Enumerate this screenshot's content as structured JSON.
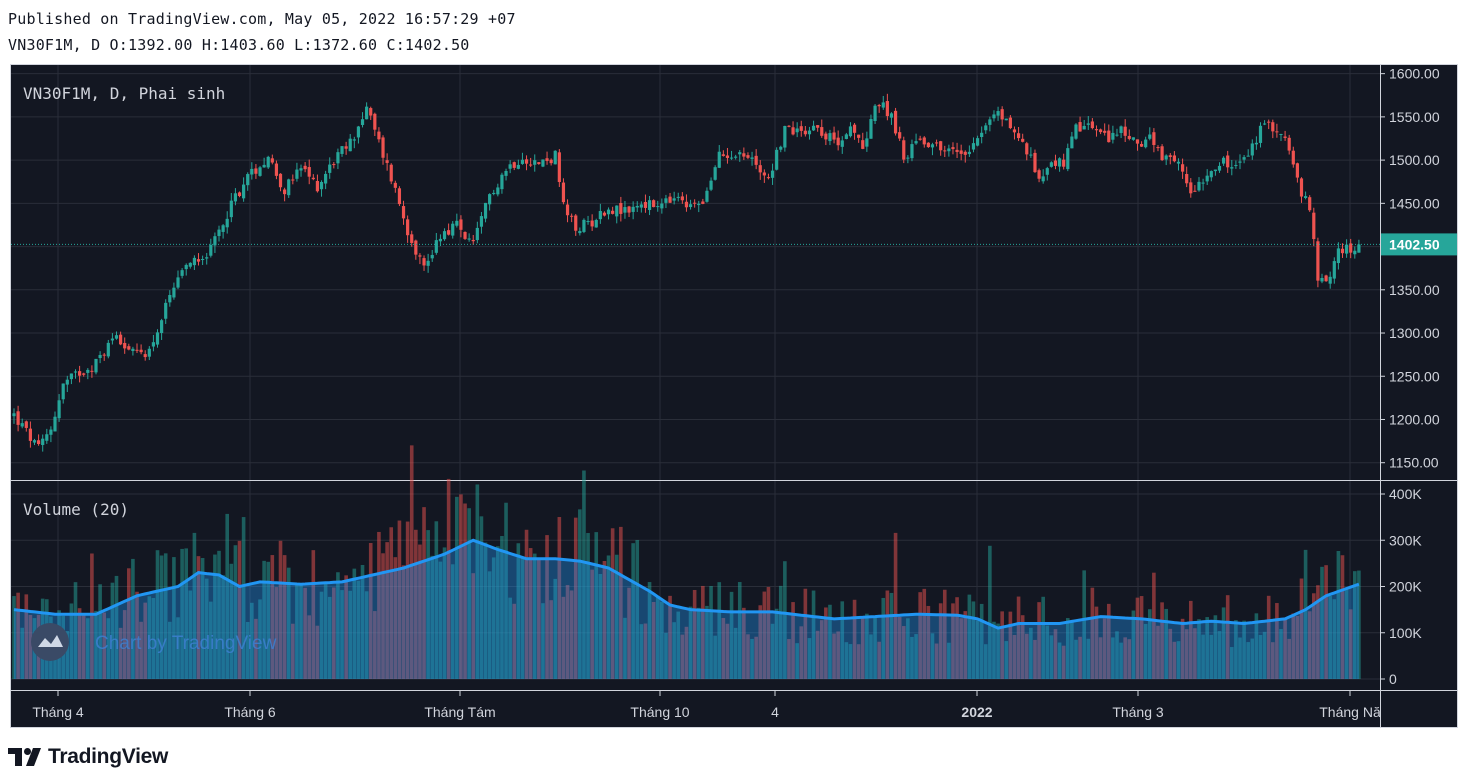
{
  "header": {
    "published": "Published on TradingView.com, May 05, 2022 16:57:29 +07",
    "ohlc_line": "VN30F1M, D O:1392.00 H:1403.60 L:1372.60 C:1402.50"
  },
  "legend": {
    "main": "VN30F1M, D, Phai sinh",
    "volume": "Volume (20)"
  },
  "watermark": {
    "text": "Chart by TradingView"
  },
  "brand": {
    "text": "TradingView"
  },
  "colors": {
    "background": "#131722",
    "up": "#26a69a",
    "down": "#ef5350",
    "grid": "#2a2e39",
    "volume_ma": "#2196f3",
    "last_price_tag": "#26a69a"
  },
  "chart_data": {
    "type": "candlestick",
    "symbol": "VN30F1M",
    "interval": "D",
    "last_price": "1402.50",
    "price_axis": {
      "ticks": [
        "1150.00",
        "1200.00",
        "1250.00",
        "1300.00",
        "1350.00",
        "1400.00",
        "1450.00",
        "1500.00",
        "1550.00",
        "1600.00"
      ],
      "range": [
        1130,
        1610
      ]
    },
    "volume_axis": {
      "ticks": [
        "0",
        "100K",
        "200K",
        "300K",
        "400K"
      ],
      "range": [
        0,
        400000
      ]
    },
    "time_axis": {
      "labels": [
        "Tháng 4",
        "Tháng 6",
        "Tháng Tám",
        "Tháng 10",
        "4",
        "2022",
        "Tháng 3",
        "Tháng Nă"
      ],
      "bold_label": "2022"
    },
    "price_path": [
      [
        0,
        1205
      ],
      [
        3,
        1185
      ],
      [
        6,
        1165
      ],
      [
        9,
        1190
      ],
      [
        12,
        1240
      ],
      [
        16,
        1255
      ],
      [
        20,
        1265
      ],
      [
        25,
        1300
      ],
      [
        29,
        1275
      ],
      [
        33,
        1280
      ],
      [
        38,
        1340
      ],
      [
        43,
        1385
      ],
      [
        48,
        1395
      ],
      [
        53,
        1450
      ],
      [
        57,
        1480
      ],
      [
        62,
        1505
      ],
      [
        66,
        1465
      ],
      [
        70,
        1490
      ],
      [
        74,
        1470
      ],
      [
        78,
        1500
      ],
      [
        82,
        1520
      ],
      [
        86,
        1560
      ],
      [
        89,
        1520
      ],
      [
        92,
        1480
      ],
      [
        96,
        1420
      ],
      [
        100,
        1375
      ],
      [
        104,
        1415
      ],
      [
        108,
        1425
      ],
      [
        112,
        1400
      ],
      [
        116,
        1460
      ],
      [
        120,
        1490
      ],
      [
        124,
        1505
      ],
      [
        128,
        1495
      ],
      [
        132,
        1505
      ],
      [
        134,
        1445
      ],
      [
        137,
        1420
      ],
      [
        141,
        1430
      ],
      [
        145,
        1445
      ],
      [
        149,
        1440
      ],
      [
        153,
        1450
      ],
      [
        157,
        1445
      ],
      [
        161,
        1455
      ],
      [
        165,
        1445
      ],
      [
        169,
        1460
      ],
      [
        172,
        1505
      ],
      [
        176,
        1510
      ],
      [
        180,
        1500
      ],
      [
        184,
        1480
      ],
      [
        188,
        1535
      ],
      [
        192,
        1535
      ],
      [
        196,
        1540
      ],
      [
        200,
        1520
      ],
      [
        204,
        1535
      ],
      [
        207,
        1515
      ],
      [
        210,
        1565
      ],
      [
        214,
        1555
      ],
      [
        217,
        1500
      ],
      [
        220,
        1525
      ],
      [
        224,
        1520
      ],
      [
        228,
        1510
      ],
      [
        232,
        1510
      ],
      [
        236,
        1535
      ],
      [
        240,
        1555
      ],
      [
        243,
        1540
      ],
      [
        247,
        1510
      ],
      [
        250,
        1480
      ],
      [
        253,
        1500
      ],
      [
        256,
        1495
      ],
      [
        259,
        1535
      ],
      [
        263,
        1540
      ],
      [
        266,
        1525
      ],
      [
        270,
        1535
      ],
      [
        273,
        1520
      ],
      [
        277,
        1525
      ],
      [
        280,
        1500
      ],
      [
        284,
        1495
      ],
      [
        287,
        1465
      ],
      [
        291,
        1485
      ],
      [
        294,
        1500
      ],
      [
        297,
        1490
      ],
      [
        301,
        1505
      ],
      [
        304,
        1535
      ],
      [
        307,
        1540
      ],
      [
        310,
        1525
      ],
      [
        313,
        1475
      ],
      [
        316,
        1440
      ],
      [
        318,
        1365
      ],
      [
        320,
        1355
      ],
      [
        323,
        1395
      ],
      [
        325,
        1400
      ],
      [
        327,
        1390
      ],
      [
        328,
        1402.5
      ]
    ],
    "volume_path": [
      [
        0,
        150000
      ],
      [
        10,
        140000
      ],
      [
        20,
        140000
      ],
      [
        30,
        180000
      ],
      [
        40,
        200000
      ],
      [
        45,
        230000
      ],
      [
        50,
        225000
      ],
      [
        55,
        200000
      ],
      [
        60,
        210000
      ],
      [
        70,
        205000
      ],
      [
        80,
        210000
      ],
      [
        90,
        230000
      ],
      [
        95,
        240000
      ],
      [
        105,
        270000
      ],
      [
        112,
        300000
      ],
      [
        118,
        280000
      ],
      [
        125,
        260000
      ],
      [
        132,
        260000
      ],
      [
        138,
        255000
      ],
      [
        145,
        240000
      ],
      [
        150,
        215000
      ],
      [
        155,
        190000
      ],
      [
        160,
        160000
      ],
      [
        165,
        150000
      ],
      [
        175,
        145000
      ],
      [
        185,
        145000
      ],
      [
        195,
        135000
      ],
      [
        200,
        130000
      ],
      [
        210,
        135000
      ],
      [
        220,
        140000
      ],
      [
        230,
        138000
      ],
      [
        235,
        130000
      ],
      [
        240,
        110000
      ],
      [
        245,
        120000
      ],
      [
        255,
        120000
      ],
      [
        265,
        135000
      ],
      [
        275,
        130000
      ],
      [
        285,
        120000
      ],
      [
        292,
        125000
      ],
      [
        300,
        120000
      ],
      [
        310,
        130000
      ],
      [
        315,
        150000
      ],
      [
        320,
        180000
      ],
      [
        328,
        205000
      ]
    ],
    "n_bars": 329
  }
}
